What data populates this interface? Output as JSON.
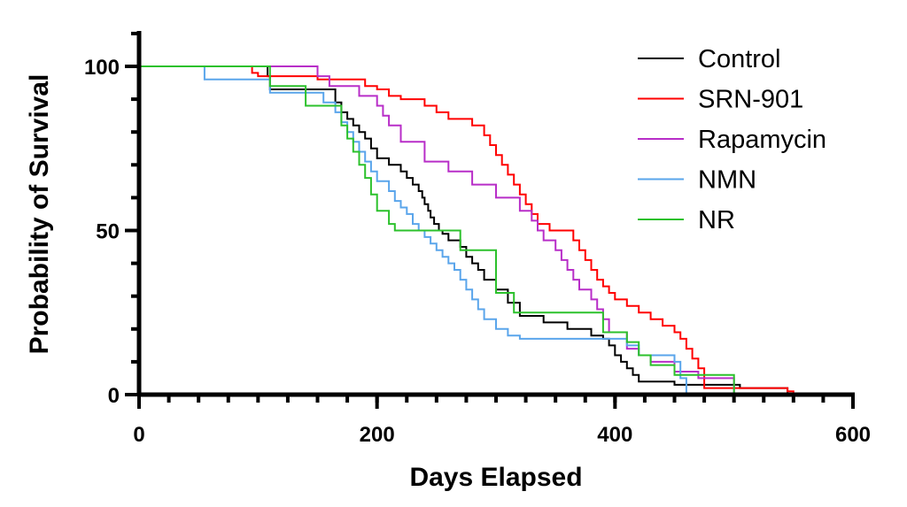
{
  "chart_data": {
    "type": "line",
    "subtype": "kaplan-meier-step",
    "title": "",
    "xlabel": "Days Elapsed",
    "ylabel": "Probability of Survival",
    "xlim": [
      0,
      600
    ],
    "ylim": [
      0,
      100
    ],
    "x_ticks": [
      0,
      200,
      400,
      600
    ],
    "y_ticks": [
      0,
      50,
      100
    ],
    "grid": false,
    "legend_position": "top-right",
    "series": [
      {
        "name": "Control",
        "color": "#000000",
        "x": [
          0,
          108,
          110,
          165,
          170,
          175,
          180,
          185,
          190,
          195,
          200,
          210,
          220,
          225,
          230,
          235,
          238,
          240,
          243,
          245,
          248,
          252,
          255,
          260,
          270,
          275,
          280,
          285,
          290,
          300,
          310,
          320,
          340,
          360,
          380,
          390,
          395,
          400,
          405,
          410,
          415,
          420,
          450,
          505,
          545
        ],
        "y": [
          100,
          97,
          93,
          89,
          86,
          84,
          82,
          80,
          78,
          75,
          72,
          70,
          68,
          66,
          64,
          62,
          60,
          58,
          56,
          54,
          52,
          50,
          49,
          47,
          45,
          42,
          40,
          38,
          35,
          32,
          28,
          24,
          22,
          20,
          18,
          17,
          15,
          12,
          10,
          8,
          6,
          4,
          3,
          2,
          0
        ]
      },
      {
        "name": "SRN-901",
        "color": "#ff0000",
        "x": [
          0,
          95,
          100,
          150,
          190,
          200,
          210,
          220,
          240,
          250,
          260,
          280,
          290,
          295,
          300,
          305,
          310,
          315,
          320,
          325,
          330,
          335,
          345,
          365,
          370,
          375,
          380,
          385,
          390,
          395,
          400,
          410,
          420,
          430,
          440,
          450,
          455,
          460,
          465,
          470,
          475,
          545,
          550
        ],
        "y": [
          100,
          98,
          97,
          96,
          94,
          93,
          91,
          90,
          88,
          86,
          84,
          82,
          79,
          76,
          73,
          70,
          67,
          64,
          61,
          58,
          55,
          52,
          50,
          47,
          44,
          41,
          38,
          35,
          33,
          31,
          29,
          27,
          25,
          23,
          21,
          19,
          17,
          14,
          11,
          8,
          2,
          1,
          0
        ]
      },
      {
        "name": "Rapamycin",
        "color": "#b82ec8",
        "x": [
          0,
          150,
          160,
          185,
          200,
          205,
          210,
          220,
          240,
          260,
          280,
          300,
          320,
          330,
          335,
          340,
          350,
          355,
          360,
          365,
          370,
          380,
          385,
          390,
          395,
          410,
          420,
          430,
          450,
          470,
          500
        ],
        "y": [
          100,
          97,
          94,
          91,
          88,
          85,
          82,
          77,
          71,
          68,
          64,
          60,
          56,
          53,
          50,
          47,
          44,
          41,
          38,
          35,
          32,
          29,
          26,
          23,
          19,
          14,
          12,
          10,
          7,
          5,
          0
        ]
      },
      {
        "name": "NMN",
        "color": "#5aa5eb",
        "x": [
          0,
          55,
          110,
          155,
          165,
          170,
          175,
          180,
          185,
          190,
          195,
          200,
          210,
          215,
          220,
          225,
          230,
          235,
          240,
          245,
          250,
          255,
          260,
          265,
          270,
          275,
          280,
          285,
          290,
          300,
          310,
          320,
          380,
          410,
          420,
          450,
          455,
          460
        ],
        "y": [
          100,
          96,
          92,
          89,
          86,
          83,
          80,
          77,
          74,
          71,
          68,
          65,
          62,
          59,
          57,
          55,
          52,
          50,
          48,
          46,
          44,
          42,
          40,
          38,
          35,
          32,
          29,
          26,
          23,
          20,
          18,
          17,
          17,
          15,
          12,
          10,
          5,
          0
        ]
      },
      {
        "name": "NR",
        "color": "#2cc12c",
        "x": [
          0,
          110,
          140,
          170,
          175,
          180,
          185,
          190,
          195,
          200,
          210,
          215,
          220,
          225,
          230,
          235,
          245,
          270,
          300,
          315,
          320,
          330,
          350,
          370,
          390,
          400,
          410,
          420,
          430,
          450,
          500
        ],
        "y": [
          100,
          94,
          88,
          82,
          78,
          74,
          70,
          66,
          61,
          56,
          52,
          50,
          50,
          50,
          50,
          50,
          50,
          44,
          31,
          25,
          25,
          25,
          25,
          25,
          19,
          19,
          16,
          12,
          9,
          6,
          0
        ]
      }
    ]
  }
}
